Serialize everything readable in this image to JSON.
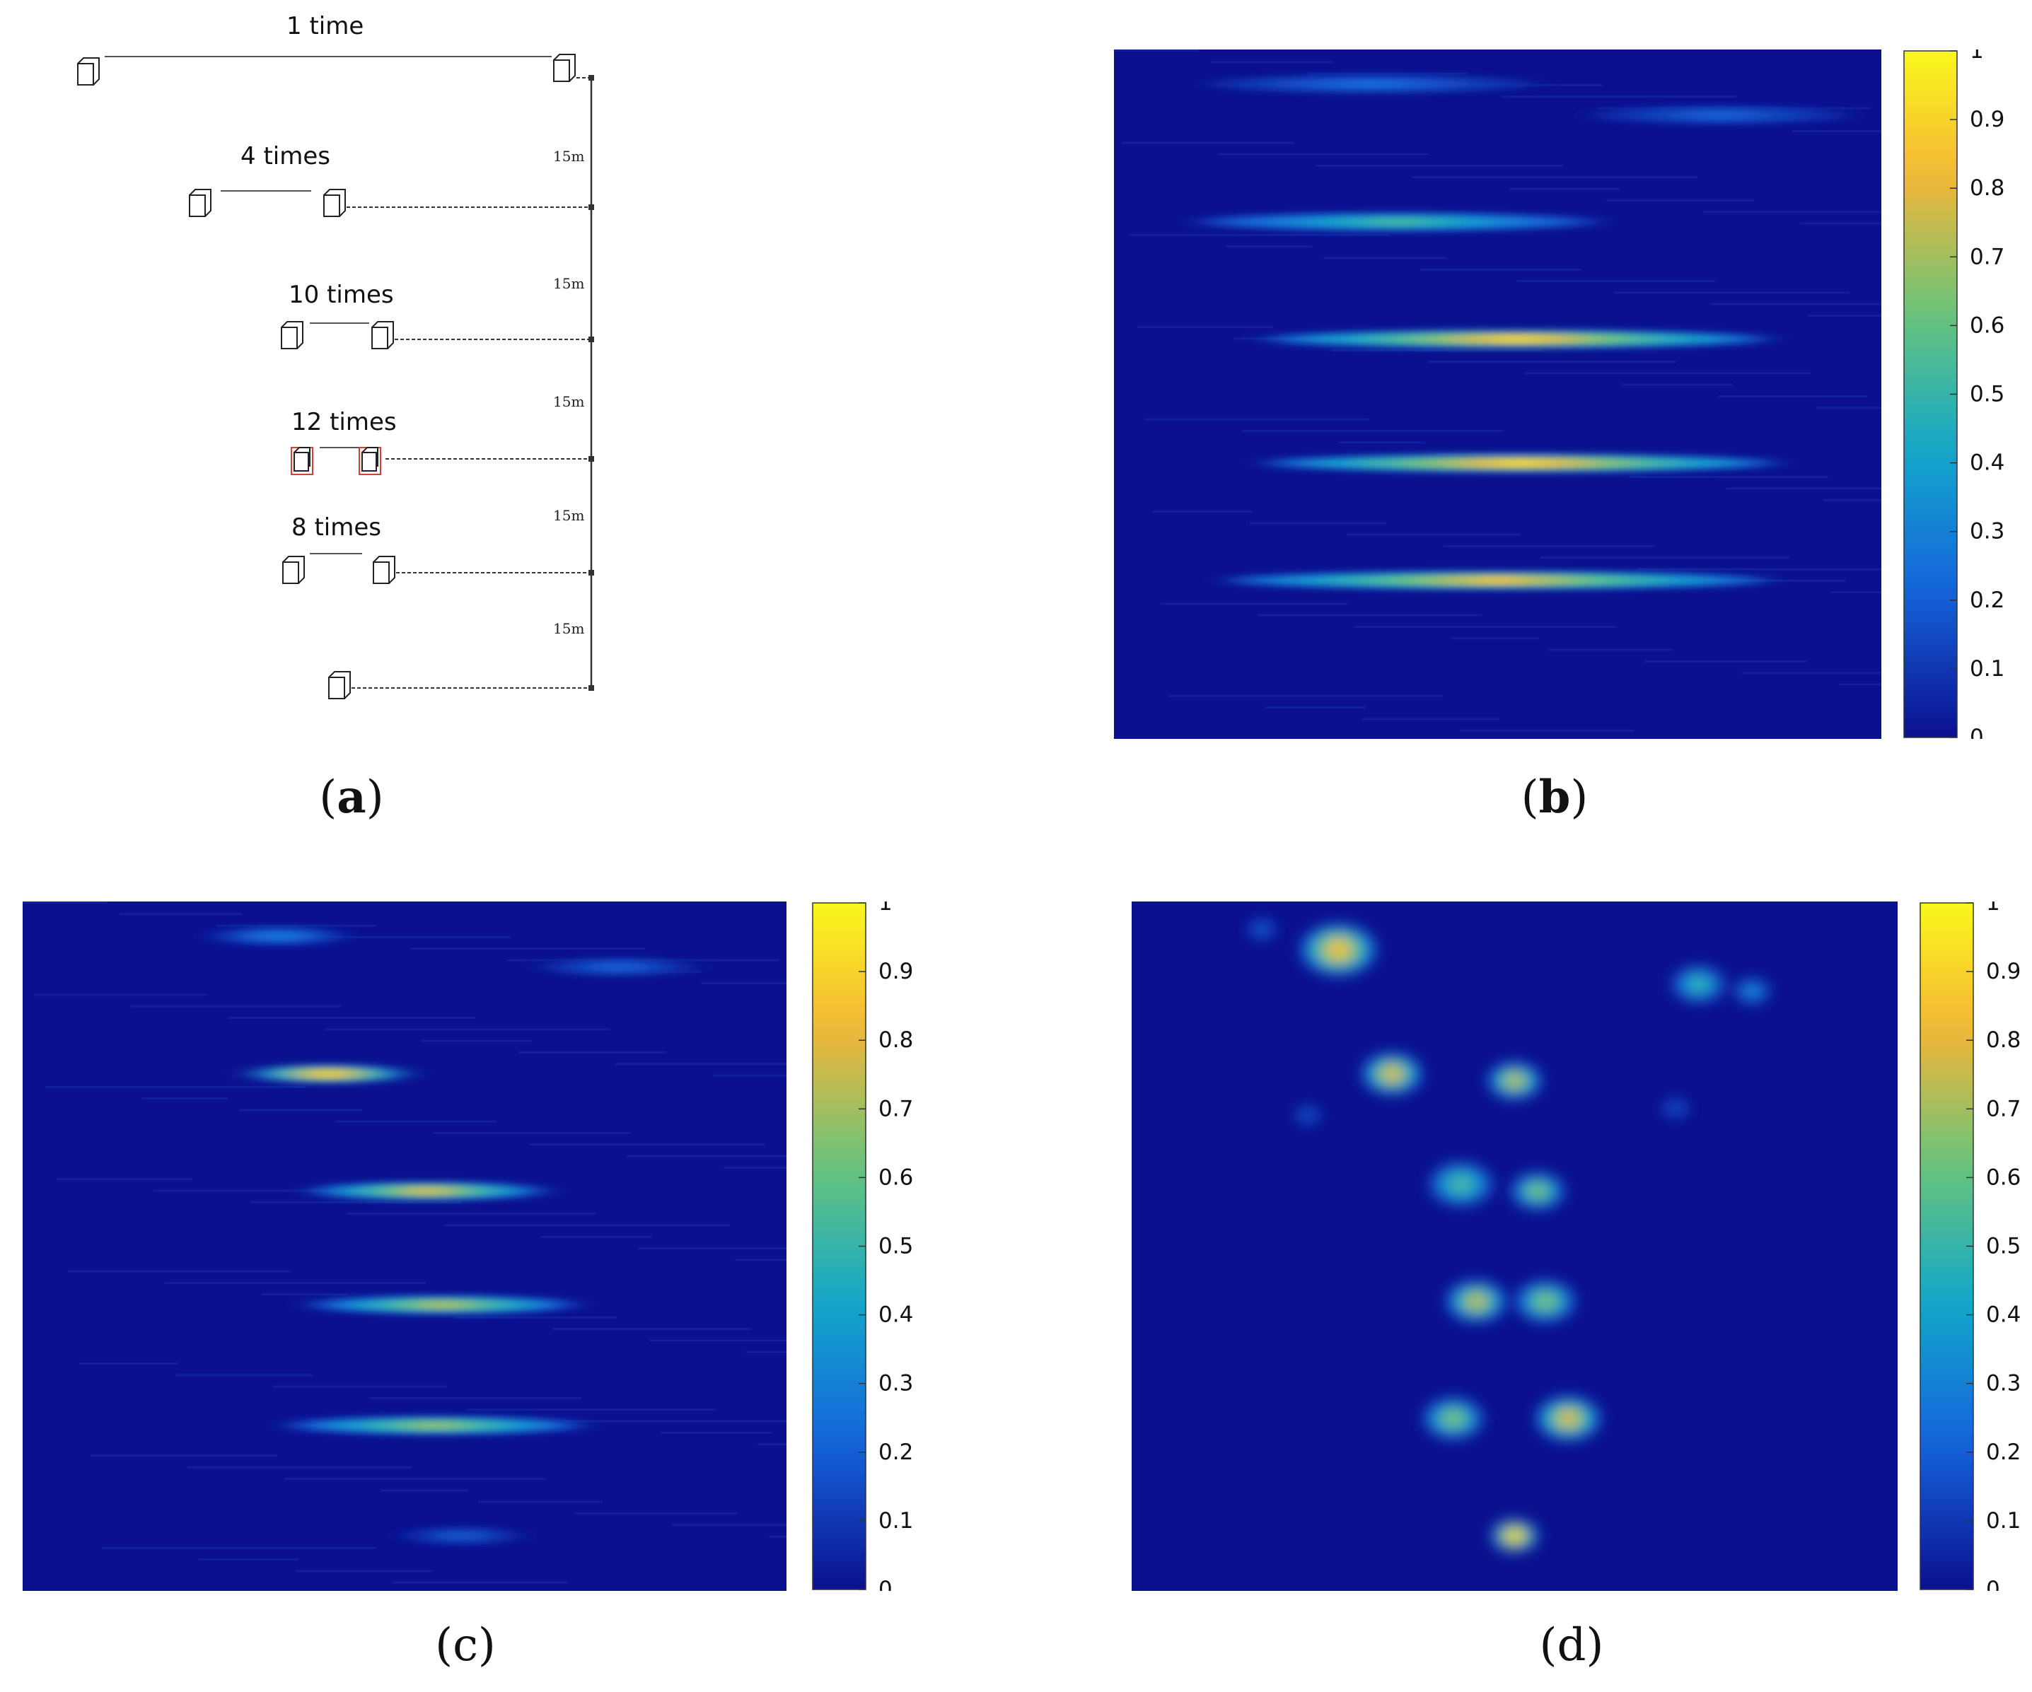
{
  "figure": {
    "captions": [
      "a",
      "b",
      "c",
      "d"
    ]
  },
  "panel_a": {
    "labels": [
      "1 time",
      "4 times",
      "10 times",
      "12 times",
      "8 times"
    ],
    "spacing_label": "15m",
    "spacing_count": 5
  },
  "colorbar": {
    "ticks": [
      "0",
      "0.1",
      "0.2",
      "0.3",
      "0.4",
      "0.5",
      "0.6",
      "0.7",
      "0.8",
      "0.9",
      "1"
    ],
    "colors": {
      "low": "#0b108f",
      "mid1": "#1566dc",
      "mid2": "#13a8c9",
      "mid3": "#6ac47a",
      "high1": "#f5b636",
      "high2": "#f9f81c"
    }
  },
  "chart_data": [
    {
      "type": "heatmap",
      "panel": "b",
      "bands": [
        {
          "y_frac": 0.05,
          "x0": 0.12,
          "x1": 0.55,
          "peak": 0.25
        },
        {
          "y_frac": 0.095,
          "x0": 0.62,
          "x1": 0.96,
          "peak": 0.22
        },
        {
          "y_frac": 0.25,
          "x0": 0.11,
          "x1": 0.63,
          "peak": 0.55
        },
        {
          "y_frac": 0.42,
          "x0": 0.2,
          "x1": 0.85,
          "peak": 0.9
        },
        {
          "y_frac": 0.6,
          "x0": 0.2,
          "x1": 0.86,
          "peak": 0.92
        },
        {
          "y_frac": 0.77,
          "x0": 0.15,
          "x1": 0.85,
          "peak": 0.85
        }
      ],
      "zlim": [
        0,
        1
      ]
    },
    {
      "type": "heatmap",
      "panel": "c",
      "bands": [
        {
          "y_frac": 0.05,
          "x0": 0.25,
          "x1": 0.42,
          "peak": 0.3
        },
        {
          "y_frac": 0.095,
          "x0": 0.68,
          "x1": 0.88,
          "peak": 0.22
        },
        {
          "y_frac": 0.25,
          "x0": 0.3,
          "x1": 0.5,
          "peak": 0.95
        },
        {
          "y_frac": 0.42,
          "x0": 0.38,
          "x1": 0.68,
          "peak": 0.82
        },
        {
          "y_frac": 0.585,
          "x0": 0.38,
          "x1": 0.72,
          "peak": 0.75
        },
        {
          "y_frac": 0.76,
          "x0": 0.35,
          "x1": 0.73,
          "peak": 0.7
        },
        {
          "y_frac": 0.92,
          "x0": 0.5,
          "x1": 0.65,
          "peak": 0.2
        }
      ],
      "zlim": [
        0,
        1
      ]
    },
    {
      "type": "heatmap",
      "panel": "d",
      "blobs": [
        {
          "x": 0.27,
          "y": 0.07,
          "r": 0.035,
          "peak": 0.85
        },
        {
          "x": 0.74,
          "y": 0.12,
          "r": 0.025,
          "peak": 0.5
        },
        {
          "x": 0.81,
          "y": 0.13,
          "r": 0.018,
          "peak": 0.35
        },
        {
          "x": 0.34,
          "y": 0.25,
          "r": 0.028,
          "peak": 0.8
        },
        {
          "x": 0.5,
          "y": 0.26,
          "r": 0.025,
          "peak": 0.75
        },
        {
          "x": 0.43,
          "y": 0.41,
          "r": 0.03,
          "peak": 0.55
        },
        {
          "x": 0.53,
          "y": 0.42,
          "r": 0.025,
          "peak": 0.65
        },
        {
          "x": 0.45,
          "y": 0.58,
          "r": 0.028,
          "peak": 0.75
        },
        {
          "x": 0.54,
          "y": 0.58,
          "r": 0.028,
          "peak": 0.65
        },
        {
          "x": 0.42,
          "y": 0.75,
          "r": 0.028,
          "peak": 0.65
        },
        {
          "x": 0.57,
          "y": 0.75,
          "r": 0.03,
          "peak": 0.8
        },
        {
          "x": 0.5,
          "y": 0.92,
          "r": 0.022,
          "peak": 0.95
        },
        {
          "x": 0.17,
          "y": 0.04,
          "r": 0.015,
          "peak": 0.22
        },
        {
          "x": 0.71,
          "y": 0.3,
          "r": 0.015,
          "peak": 0.18
        },
        {
          "x": 0.23,
          "y": 0.31,
          "r": 0.014,
          "peak": 0.2
        }
      ],
      "zlim": [
        0,
        1
      ]
    }
  ]
}
